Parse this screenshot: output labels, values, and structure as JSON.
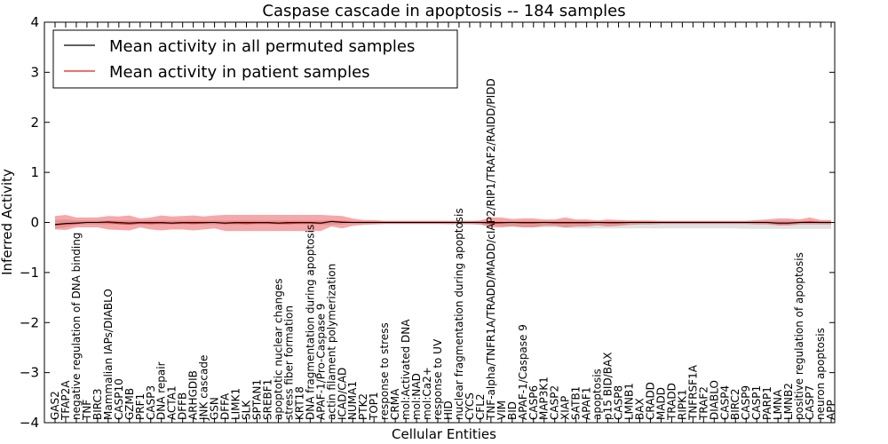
{
  "chart_data": {
    "type": "line",
    "title": "Caspase cascade in apoptosis -- 184 samples",
    "xlabel": "Cellular Entities",
    "ylabel": "Inferred Activity",
    "ylim": [
      -4,
      4
    ],
    "yticks": [
      {
        "value": 4,
        "label": "4"
      },
      {
        "value": 3,
        "label": "3"
      },
      {
        "value": 2,
        "label": "2"
      },
      {
        "value": 1,
        "label": "1"
      },
      {
        "value": 0,
        "label": "0"
      },
      {
        "value": -1,
        "label": "−1"
      },
      {
        "value": -2,
        "label": "−2"
      },
      {
        "value": -3,
        "label": "−3"
      },
      {
        "value": -4,
        "label": "−4"
      }
    ],
    "grid": false,
    "legend_position": "upper-left",
    "legend": [
      {
        "label": "Mean activity in all permuted samples",
        "color": "#000000"
      },
      {
        "label": "Mean activity in patient samples",
        "color": "#e41a1c"
      }
    ],
    "categories": [
      "GAS2",
      "TFAP2A",
      "negative regulation of DNA binding",
      "TNF",
      "BIRC3",
      "Mammalian IAPs/DIABLO",
      "CASP10",
      "GZMB",
      "PRF1",
      "CASP3",
      "DNA repair",
      "ACTA1",
      "DFFB",
      "ARHGDIB",
      "JNK cascade",
      "GSN",
      "DFFA",
      "LIMK1",
      "SLK",
      "SPTAN1",
      "SREBF1",
      "apoptotic nuclear changes",
      "stress fiber formation",
      "KRT18",
      "DNA fragmentation during apoptosis",
      "APAF-1/Pro-Caspase 9",
      "actin filament polymerization",
      "ICAD/CAD",
      "NUMA1",
      "PTK2",
      "TOP1",
      "response to stress",
      "CRMA",
      "mol:Activated DNA",
      "mol:NAD",
      "mol:Ca2+",
      "response to UV",
      "HID",
      "nuclear fragmentation during apoptosis",
      "CYCS",
      "CFL2",
      "TNF-alpha/TNFR1A/TRADD/MADD/cIAP2/RIP1/TRAF2/RAIDD/PIDD",
      "VIM",
      "BID",
      "APAF-1/Caspase 9",
      "CASP6",
      "MAP3K1",
      "CASP2",
      "XIAP",
      "SATB1",
      "APAF1",
      "apoptosis",
      "p15 BID/BAX",
      "CASP8",
      "LMNB1",
      "BAX",
      "CRADD",
      "MADD",
      "TRADD",
      "RIPK1",
      "TNFRSF1A",
      "TRAF2",
      "DIABLO",
      "CASP4",
      "BIRC2",
      "CASP9",
      "CASP1",
      "PARP1",
      "LMNA",
      "LMNB2",
      "positive regulation of apoptosis",
      "CASP7",
      "neuron apoptosis",
      "APP"
    ],
    "series": [
      {
        "name": "Mean activity in all permuted samples",
        "color": "#000000",
        "values": [
          -0.04,
          -0.02,
          -0.01,
          0.0,
          0.0,
          0.01,
          0.0,
          -0.01,
          0.0,
          0.0,
          0.0,
          -0.01,
          0.0,
          0.0,
          0.0,
          0.0,
          -0.01,
          0.0,
          0.0,
          0.0,
          0.0,
          -0.01,
          0.0,
          0.0,
          0.0,
          -0.01,
          0.02,
          0.0,
          0.0,
          0.0,
          0.0,
          0.0,
          0.0,
          0.0,
          0.0,
          0.0,
          0.0,
          0.0,
          0.0,
          0.0,
          0.0,
          0.0,
          0.0,
          0.0,
          0.0,
          0.0,
          0.0,
          0.0,
          0.0,
          0.0,
          0.0,
          0.0,
          0.0,
          0.0,
          0.0,
          0.0,
          0.0,
          0.0,
          0.0,
          0.0,
          0.0,
          0.0,
          0.0,
          0.0,
          0.0,
          0.0,
          0.0,
          0.0,
          -0.01,
          -0.01,
          0.0,
          0.0,
          0.0,
          0.0
        ],
        "band_lower": [
          -0.12,
          -0.1,
          -0.05,
          -0.04,
          -0.04,
          -0.04,
          -0.04,
          -0.05,
          -0.05,
          -0.05,
          -0.05,
          -0.04,
          -0.04,
          -0.04,
          -0.04,
          -0.04,
          -0.05,
          -0.05,
          -0.05,
          -0.04,
          -0.04,
          -0.04,
          -0.04,
          -0.04,
          -0.04,
          -0.05,
          -0.05,
          -0.04,
          -0.03,
          -0.03,
          -0.03,
          -0.03,
          -0.03,
          -0.03,
          -0.03,
          -0.03,
          -0.03,
          -0.04,
          -0.04,
          -0.04,
          -0.05,
          -0.06,
          -0.07,
          -0.08,
          -0.09,
          -0.1,
          -0.1,
          -0.1,
          -0.11,
          -0.12,
          -0.12,
          -0.12,
          -0.12,
          -0.12,
          -0.12,
          -0.12,
          -0.12,
          -0.12,
          -0.12,
          -0.12,
          -0.12,
          -0.12,
          -0.12,
          -0.12,
          -0.12,
          -0.13,
          -0.13,
          -0.13,
          -0.13,
          -0.13,
          -0.13,
          -0.13,
          -0.13,
          -0.13
        ],
        "band_upper": [
          0.05,
          0.06,
          0.04,
          0.04,
          0.04,
          0.04,
          0.04,
          0.04,
          0.04,
          0.04,
          0.04,
          0.04,
          0.04,
          0.04,
          0.04,
          0.04,
          0.04,
          0.04,
          0.04,
          0.04,
          0.04,
          0.04,
          0.04,
          0.04,
          0.04,
          0.04,
          0.05,
          0.04,
          0.03,
          0.03,
          0.03,
          0.03,
          0.03,
          0.03,
          0.03,
          0.03,
          0.03,
          0.03,
          0.03,
          0.03,
          0.03,
          0.03,
          0.03,
          0.03,
          0.03,
          0.03,
          0.03,
          0.03,
          0.03,
          0.03,
          0.03,
          0.03,
          0.03,
          0.03,
          0.03,
          0.03,
          0.03,
          0.03,
          0.03,
          0.03,
          0.03,
          0.03,
          0.03,
          0.03,
          0.03,
          0.03,
          0.03,
          0.03,
          0.03,
          0.03,
          0.03,
          0.03,
          0.03,
          0.03
        ]
      },
      {
        "name": "Mean activity in patient samples",
        "color": "#e41a1c",
        "values": [
          -0.05,
          -0.03,
          -0.02,
          0.0,
          0.0,
          0.0,
          -0.02,
          -0.03,
          -0.01,
          -0.02,
          -0.01,
          -0.02,
          -0.01,
          -0.02,
          -0.01,
          0.0,
          -0.02,
          -0.01,
          -0.02,
          -0.01,
          -0.01,
          -0.02,
          -0.02,
          -0.01,
          -0.01,
          -0.02,
          0.02,
          0.01,
          0.0,
          0.0,
          0.0,
          0.0,
          0.0,
          0.0,
          0.0,
          0.0,
          0.0,
          0.0,
          0.0,
          0.0,
          0.0,
          -0.02,
          -0.01,
          0.0,
          -0.01,
          -0.01,
          0.0,
          -0.01,
          -0.01,
          -0.01,
          -0.01,
          0.0,
          -0.01,
          -0.01,
          0.0,
          0.0,
          0.0,
          0.0,
          0.0,
          0.0,
          0.0,
          0.0,
          0.0,
          0.0,
          0.0,
          0.0,
          0.0,
          0.0,
          -0.02,
          -0.02,
          0.0,
          0.01,
          0.0,
          0.0
        ],
        "band_lower": [
          -0.14,
          -0.15,
          -0.1,
          -0.1,
          -0.1,
          -0.14,
          -0.15,
          -0.16,
          -0.1,
          -0.14,
          -0.16,
          -0.14,
          -0.14,
          -0.16,
          -0.14,
          -0.12,
          -0.17,
          -0.17,
          -0.17,
          -0.17,
          -0.17,
          -0.17,
          -0.17,
          -0.17,
          -0.17,
          -0.17,
          -0.08,
          -0.12,
          -0.07,
          -0.05,
          -0.04,
          -0.03,
          -0.03,
          -0.03,
          -0.03,
          -0.03,
          -0.03,
          -0.03,
          -0.03,
          -0.03,
          -0.04,
          -0.1,
          -0.1,
          -0.08,
          -0.1,
          -0.1,
          -0.07,
          -0.07,
          -0.1,
          -0.08,
          -0.08,
          -0.06,
          -0.08,
          -0.07,
          -0.05,
          -0.04,
          -0.04,
          -0.03,
          -0.03,
          -0.03,
          -0.03,
          -0.03,
          -0.03,
          -0.03,
          -0.03,
          -0.03,
          -0.04,
          -0.04,
          -0.06,
          -0.06,
          -0.04,
          -0.04,
          -0.04,
          -0.04
        ],
        "band_upper": [
          0.13,
          0.15,
          0.1,
          0.1,
          0.1,
          0.13,
          0.12,
          0.14,
          0.08,
          0.1,
          0.14,
          0.12,
          0.13,
          0.14,
          0.12,
          0.14,
          0.15,
          0.15,
          0.15,
          0.15,
          0.15,
          0.15,
          0.15,
          0.15,
          0.15,
          0.15,
          0.14,
          0.13,
          0.08,
          0.05,
          0.05,
          0.03,
          0.03,
          0.03,
          0.03,
          0.03,
          0.03,
          0.03,
          0.03,
          0.03,
          0.04,
          0.1,
          0.1,
          0.07,
          0.08,
          0.08,
          0.06,
          0.06,
          0.1,
          0.06,
          0.06,
          0.04,
          0.06,
          0.05,
          0.04,
          0.04,
          0.04,
          0.03,
          0.03,
          0.03,
          0.03,
          0.03,
          0.03,
          0.03,
          0.03,
          0.03,
          0.05,
          0.06,
          0.08,
          0.08,
          0.06,
          0.1,
          0.05,
          0.05
        ]
      }
    ]
  }
}
